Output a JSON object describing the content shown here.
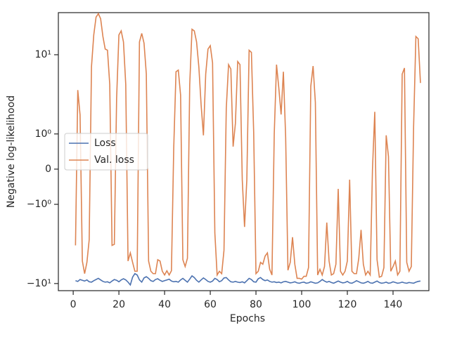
{
  "chart_data": {
    "type": "line",
    "xlabel": "Epochs",
    "ylabel": "Negative log-likelihood",
    "yscale": "symlog",
    "linthresh": 1,
    "linscale": 0.4,
    "xlim": [
      -6.5,
      155.7
    ],
    "ylim": [
      -12.3,
      34
    ],
    "xticks": [
      0,
      20,
      40,
      60,
      80,
      100,
      120,
      140
    ],
    "yticks": [
      {
        "value": -10,
        "label": "−10¹"
      },
      {
        "value": -1,
        "label": "−10⁰"
      },
      0,
      {
        "value": 1,
        "label": "10⁰"
      },
      {
        "value": 10,
        "label": "10¹"
      }
    ],
    "legend": "center left",
    "x": [
      1,
      2,
      3,
      4,
      5,
      6,
      7,
      8,
      9,
      10,
      11,
      12,
      13,
      14,
      15,
      16,
      17,
      18,
      19,
      20,
      21,
      22,
      23,
      24,
      25,
      26,
      27,
      28,
      29,
      30,
      31,
      32,
      33,
      34,
      35,
      36,
      37,
      38,
      39,
      40,
      41,
      42,
      43,
      44,
      45,
      46,
      47,
      48,
      49,
      50,
      51,
      52,
      53,
      54,
      55,
      56,
      57,
      58,
      59,
      60,
      61,
      62,
      63,
      64,
      65,
      66,
      67,
      68,
      69,
      70,
      71,
      72,
      73,
      74,
      75,
      76,
      77,
      78,
      79,
      80,
      81,
      82,
      83,
      84,
      85,
      86,
      87,
      88,
      89,
      90,
      91,
      92,
      93,
      94,
      95,
      96,
      97,
      98,
      99,
      100,
      101,
      102,
      103,
      104,
      105,
      106,
      107,
      108,
      109,
      110,
      111,
      112,
      113,
      114,
      115,
      116,
      117,
      118,
      119,
      120,
      121,
      122,
      123,
      124,
      125,
      126,
      127,
      128,
      129,
      130,
      131,
      132,
      133,
      134,
      135,
      136,
      137,
      138,
      139,
      140,
      141,
      142,
      143,
      144,
      145,
      146,
      147,
      148,
      149,
      150,
      151,
      152
    ],
    "series": [
      {
        "name": "Loss",
        "color": "#4c72b0",
        "values": [
          -9.2,
          -9.4,
          -8.9,
          -9.1,
          -9.3,
          -9.0,
          -9.5,
          -9.6,
          -9.2,
          -8.9,
          -8.6,
          -9.0,
          -9.4,
          -9.6,
          -9.5,
          -9.8,
          -9.3,
          -8.9,
          -9.1,
          -9.5,
          -9.0,
          -8.7,
          -9.0,
          -9.6,
          -10.4,
          -8.3,
          -7.5,
          -7.8,
          -9.0,
          -9.6,
          -8.5,
          -8.2,
          -8.6,
          -9.2,
          -9.4,
          -8.9,
          -8.7,
          -9.1,
          -9.4,
          -9.2,
          -9.0,
          -8.8,
          -9.3,
          -9.5,
          -9.4,
          -9.6,
          -9.0,
          -8.6,
          -9.1,
          -9.6,
          -8.8,
          -8.0,
          -8.4,
          -9.1,
          -9.6,
          -9.0,
          -8.5,
          -8.9,
          -9.4,
          -9.6,
          -9.3,
          -8.6,
          -8.9,
          -9.5,
          -9.2,
          -8.5,
          -8.4,
          -9.0,
          -9.5,
          -9.6,
          -9.4,
          -9.6,
          -9.7,
          -9.5,
          -9.8,
          -9.2,
          -8.6,
          -8.9,
          -9.5,
          -9.6,
          -8.7,
          -8.4,
          -8.9,
          -9.2,
          -9.0,
          -9.4,
          -9.6,
          -9.5,
          -9.7,
          -9.6,
          -9.8,
          -9.5,
          -9.4,
          -9.6,
          -9.8,
          -9.7,
          -9.5,
          -9.8,
          -9.9,
          -9.7,
          -9.6,
          -9.9,
          -9.8,
          -9.5,
          -9.7,
          -9.9,
          -9.8,
          -9.4,
          -8.9,
          -9.3,
          -9.6,
          -9.4,
          -9.7,
          -9.9,
          -9.6,
          -9.3,
          -9.6,
          -9.8,
          -9.7,
          -9.4,
          -9.8,
          -9.9,
          -9.6,
          -9.2,
          -9.5,
          -9.8,
          -9.9,
          -9.7,
          -9.4,
          -9.8,
          -9.9,
          -9.6,
          -9.3,
          -9.7,
          -9.9,
          -9.8,
          -9.6,
          -9.9,
          -9.8,
          -9.5,
          -9.7,
          -9.9,
          -9.8,
          -9.6,
          -9.8,
          -9.9,
          -9.7,
          -9.8,
          -9.9,
          -9.6,
          -9.4,
          -9.3
        ]
      },
      {
        "name": "Val. loss",
        "color": "#dd8452",
        "values": [
          -3.3,
          3.58,
          1.74,
          -5.2,
          -7.5,
          -5.4,
          -2.8,
          7.06,
          17.8,
          29.8,
          33,
          28.5,
          17,
          11.8,
          11.4,
          4.2,
          -3.3,
          -3.2,
          2.8,
          17.8,
          20,
          14.5,
          4.2,
          -5.2,
          -4.1,
          -5.4,
          -7,
          -7,
          14.5,
          18.6,
          14,
          5.74,
          -5.2,
          -7,
          -7.5,
          -7.5,
          -5,
          -5.2,
          -7,
          -7.8,
          -6.9,
          -7.8,
          -6.9,
          0.6,
          6.1,
          6.4,
          3.1,
          -5,
          -6.1,
          -4.8,
          4.2,
          21,
          20,
          14.5,
          7,
          2.3,
          0.96,
          5.7,
          11.8,
          13,
          7.9,
          -2.3,
          -7.8,
          -7,
          -7.5,
          -3.8,
          2.1,
          7.5,
          6.6,
          0.64,
          1.36,
          8.2,
          7.5,
          -0.3,
          -1.93,
          -0.3,
          11.4,
          10.7,
          1.04,
          -7.5,
          -7,
          -5.4,
          -5.7,
          -4.5,
          -4.1,
          -6.6,
          -7.8,
          1.0,
          7.5,
          3.8,
          1.76,
          6.1,
          0.9,
          -6.8,
          -5.4,
          -2.6,
          -5.7,
          -8.6,
          -8.6,
          -8.8,
          -8.1,
          -8.1,
          -6.3,
          4.0,
          7.2,
          2.5,
          -7.8,
          -6.6,
          -7.8,
          -6.1,
          -1.7,
          -5.2,
          -7.8,
          -7.5,
          -5.7,
          -0.56,
          -7,
          -7.8,
          -7,
          -5.2,
          -0.3,
          -7,
          -7.5,
          -7.5,
          -4.8,
          -2.1,
          -5.7,
          -7.8,
          -7,
          -7.8,
          0,
          1.9,
          -5,
          -8.3,
          -8.1,
          -6.3,
          0.96,
          0.36,
          -7,
          -6.1,
          -5.2,
          -7.8,
          -7,
          5.7,
          6.8,
          -5.4,
          -7,
          -6.1,
          1.23,
          17,
          15.9,
          4.4
        ]
      }
    ]
  }
}
